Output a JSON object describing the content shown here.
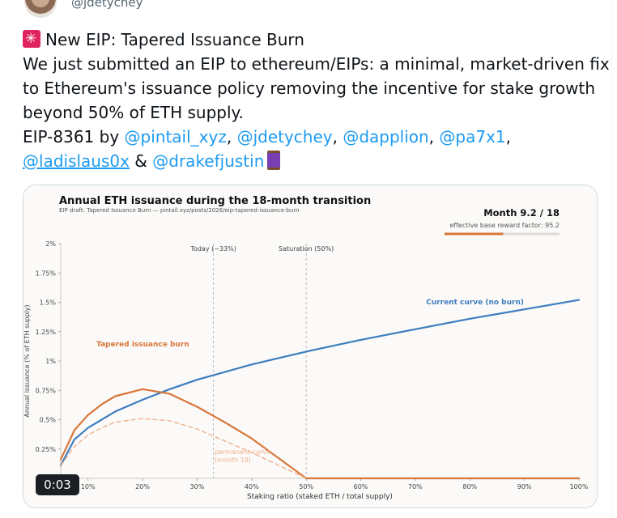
{
  "author": {
    "handle": "@jdetychey"
  },
  "tweet": {
    "line1": "New EIP: Tapered Issuance Burn",
    "line2": "We just submitted an EIP to ethereum/EIPs: a minimal, market-driven fix",
    "line3": "to Ethereum's issuance policy removing the incentive for stake growth",
    "line4": "beyond 50% of ETH supply.",
    "eip_prefix": "EIP-8361 by ",
    "mentions": [
      "@pintail_xyz",
      "@jdetychey",
      "@dapplion",
      "@pa7x1",
      "@ladislaus0x",
      "@drakefjustin"
    ],
    "sep_comma": ", ",
    "sep_amp": " & ",
    "icons": [
      "siren-icon",
      "thread-spool-icon"
    ]
  },
  "video": {
    "time": "0:03"
  },
  "chart_data": {
    "type": "line",
    "title": "Annual ETH issuance during the 18-month transition",
    "subtitle": "EIP draft: Tapered Issuance Burn — pintail.xyz/posts/2026/eip-tapered-issuance-burn",
    "xlabel": "Staking ratio (staked ETH / total supply)",
    "ylabel": "Annual issuance (% of ETH supply)",
    "xlim": [
      0.05,
      1.0
    ],
    "ylim": [
      0,
      2.0
    ],
    "xticks": [
      0.1,
      0.2,
      0.3,
      0.4,
      0.5,
      0.6,
      0.7,
      0.8,
      0.9,
      1.0
    ],
    "xtick_labels": [
      "10%",
      "20%",
      "30%",
      "40%",
      "50%",
      "60%",
      "70%",
      "80%",
      "90%",
      "100%"
    ],
    "yticks": [
      0.25,
      0.5,
      0.75,
      1.0,
      1.25,
      1.5,
      1.75,
      2.0
    ],
    "ytick_labels": [
      "0.25%",
      "0.5%",
      "0.75%",
      "1%",
      "1.25%",
      "1.5%",
      "1.75%",
      "2%"
    ],
    "vlines": [
      {
        "x": 0.33,
        "label": "Today (~33%)"
      },
      {
        "x": 0.5,
        "label": "Saturation (50%)"
      }
    ],
    "month_label": "Month 9.2 / 18",
    "factor_label": "effective base reward factor:  95.2",
    "progress_fraction": 0.51,
    "series": [
      {
        "name": "Current curve (no burn)",
        "color": "#3d7ebf",
        "style": "solid",
        "x": [
          0.05,
          0.075,
          0.1,
          0.15,
          0.2,
          0.25,
          0.3,
          0.4,
          0.5,
          0.6,
          0.7,
          0.8,
          0.9,
          1.0
        ],
        "y": [
          0.11,
          0.33,
          0.43,
          0.57,
          0.67,
          0.76,
          0.84,
          0.97,
          1.08,
          1.18,
          1.27,
          1.36,
          1.44,
          1.52
        ]
      },
      {
        "name": "Tapered issuance burn",
        "color": "#d9763a",
        "style": "solid",
        "x": [
          0.05,
          0.075,
          0.1,
          0.125,
          0.15,
          0.2,
          0.25,
          0.3,
          0.35,
          0.4,
          0.45,
          0.5,
          0.6,
          0.7,
          0.8,
          0.9,
          1.0
        ],
        "y": [
          0.16,
          0.41,
          0.54,
          0.63,
          0.7,
          0.76,
          0.72,
          0.61,
          0.48,
          0.34,
          0.17,
          0.0,
          0.0,
          0.0,
          0.0,
          0.0,
          0.0
        ]
      },
      {
        "name": "permanent curve\n(month 18)",
        "color": "#efb08c",
        "style": "dashed",
        "x": [
          0.05,
          0.075,
          0.1,
          0.125,
          0.15,
          0.2,
          0.25,
          0.3,
          0.35,
          0.4,
          0.45,
          0.5
        ],
        "y": [
          0.11,
          0.27,
          0.37,
          0.43,
          0.48,
          0.51,
          0.49,
          0.42,
          0.32,
          0.22,
          0.11,
          0.0
        ]
      }
    ]
  }
}
